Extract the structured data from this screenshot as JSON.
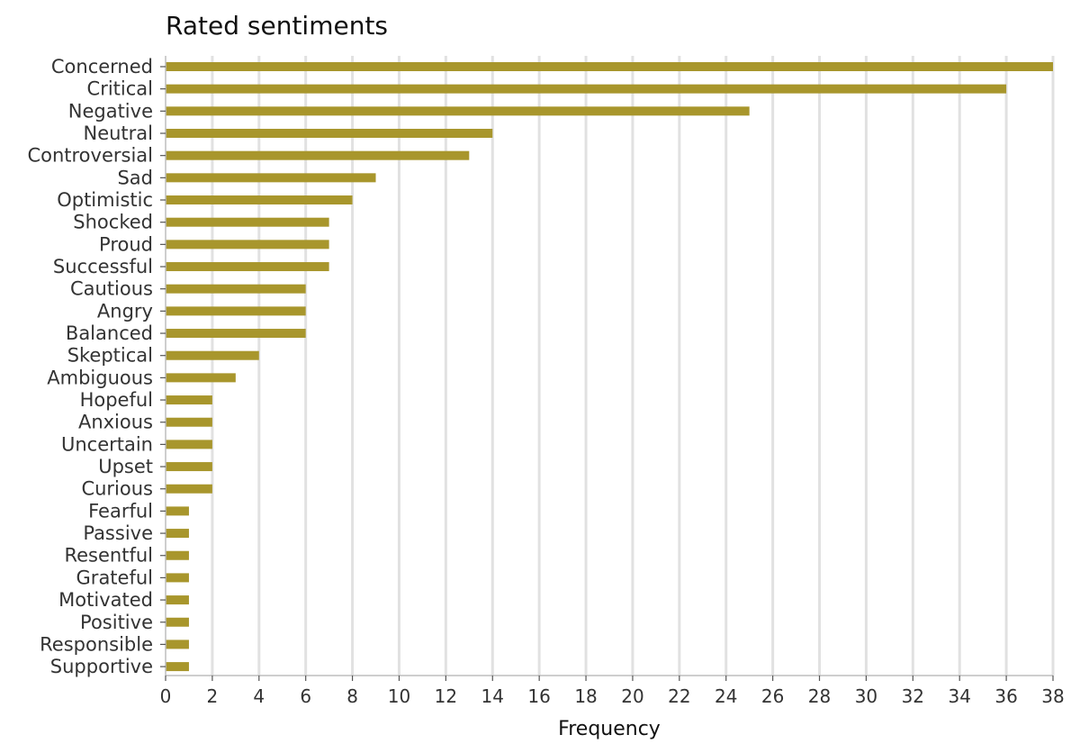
{
  "chart_data": {
    "type": "bar",
    "orientation": "horizontal",
    "title": "Rated sentiments",
    "xlabel": "Frequency",
    "ylabel": "",
    "categories": [
      "Concerned",
      "Critical",
      "Negative",
      "Neutral",
      "Controversial",
      "Sad",
      "Optimistic",
      "Shocked",
      "Proud",
      "Successful",
      "Cautious",
      "Angry",
      "Balanced",
      "Skeptical",
      "Ambiguous",
      "Hopeful",
      "Anxious",
      "Uncertain",
      "Upset",
      "Curious",
      "Fearful",
      "Passive",
      "Resentful",
      "Grateful",
      "Motivated",
      "Positive",
      "Responsible",
      "Supportive"
    ],
    "values": [
      38,
      36,
      25,
      14,
      13,
      9,
      8,
      7,
      7,
      7,
      6,
      6,
      6,
      4,
      3,
      2,
      2,
      2,
      2,
      2,
      1,
      1,
      1,
      1,
      1,
      1,
      1,
      1
    ],
    "xlim": [
      0,
      38
    ],
    "xticks": [
      0,
      2,
      4,
      6,
      8,
      10,
      12,
      14,
      16,
      18,
      20,
      22,
      24,
      26,
      28,
      30,
      32,
      34,
      36,
      38
    ],
    "grid": "vertical",
    "bar_color": "#a8962c",
    "grid_color": "#e1e1e1",
    "axis_color": "#bdbdbd"
  }
}
